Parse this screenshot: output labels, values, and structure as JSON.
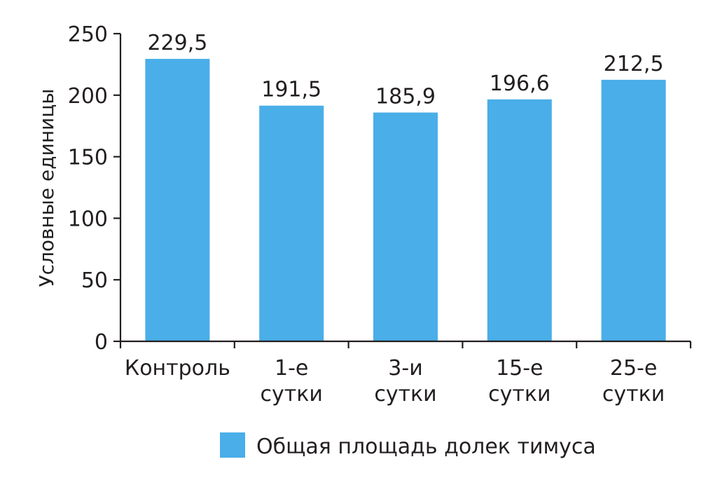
{
  "chart_data": {
    "type": "bar",
    "categories": [
      [
        "Контроль"
      ],
      [
        "1-е",
        "сутки"
      ],
      [
        "3-и",
        "сутки"
      ],
      [
        "15-е",
        "сутки"
      ],
      [
        "25-е",
        "сутки"
      ]
    ],
    "series": [
      {
        "name": "Общая площадь долек тимуса",
        "values": [
          229.5,
          191.5,
          185.9,
          196.6,
          212.5
        ],
        "value_labels": [
          "229,5",
          "191,5",
          "185,9",
          "196,6",
          "212,5"
        ],
        "color": "#4aaee8"
      }
    ],
    "title": "",
    "xlabel": "",
    "ylabel": "Условные единицы",
    "ylim": [
      0,
      250
    ],
    "yticks": [
      0,
      50,
      100,
      150,
      200,
      250
    ],
    "grid": false,
    "legend": "bottom"
  }
}
